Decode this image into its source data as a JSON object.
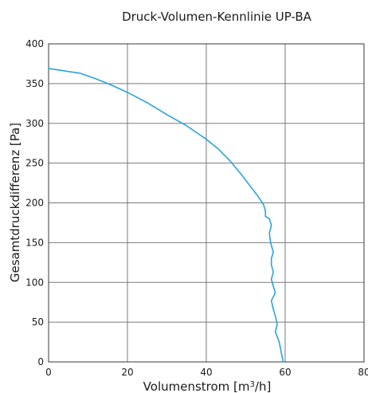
{
  "chart_data": {
    "type": "line",
    "title": "Druck-Volumen-Kennlinie UP-BA",
    "xlabel_main": "Volumenstrom [m",
    "xlabel_sup": "3",
    "xlabel_end": "/h]",
    "ylabel": "Gesamtdruckdifferenz [Pa]",
    "xlim": [
      0,
      80
    ],
    "ylim": [
      0,
      400
    ],
    "xticks": [
      0,
      20,
      40,
      60,
      80
    ],
    "yticks": [
      0,
      50,
      100,
      150,
      200,
      250,
      300,
      350,
      400
    ],
    "xtick_labels": [
      "0",
      "20",
      "40",
      "60",
      "80"
    ],
    "ytick_labels": [
      "0",
      "50",
      "100",
      "150",
      "200",
      "250",
      "300",
      "350",
      "400"
    ],
    "grid": true,
    "series": [
      {
        "color": "#2aa3dc",
        "x": [
          0,
          4,
          8,
          12,
          16,
          20,
          25,
          30,
          35,
          40,
          43,
          46,
          49,
          51,
          53,
          54.5,
          55,
          55,
          56,
          56.5,
          56,
          56.3,
          57,
          56.5,
          56.5,
          57,
          56.5,
          57,
          57.5,
          56.5,
          57,
          57.5,
          58,
          57.5,
          58.5,
          59,
          59.5
        ],
        "y": [
          369,
          366,
          363,
          356,
          348,
          339,
          326,
          311,
          297,
          280,
          268,
          253,
          235,
          222,
          209,
          198,
          190,
          183,
          180,
          172,
          162,
          150,
          138,
          130,
          122,
          113,
          104,
          95,
          87,
          77,
          66,
          58,
          47,
          38,
          25,
          12,
          0
        ]
      }
    ]
  }
}
